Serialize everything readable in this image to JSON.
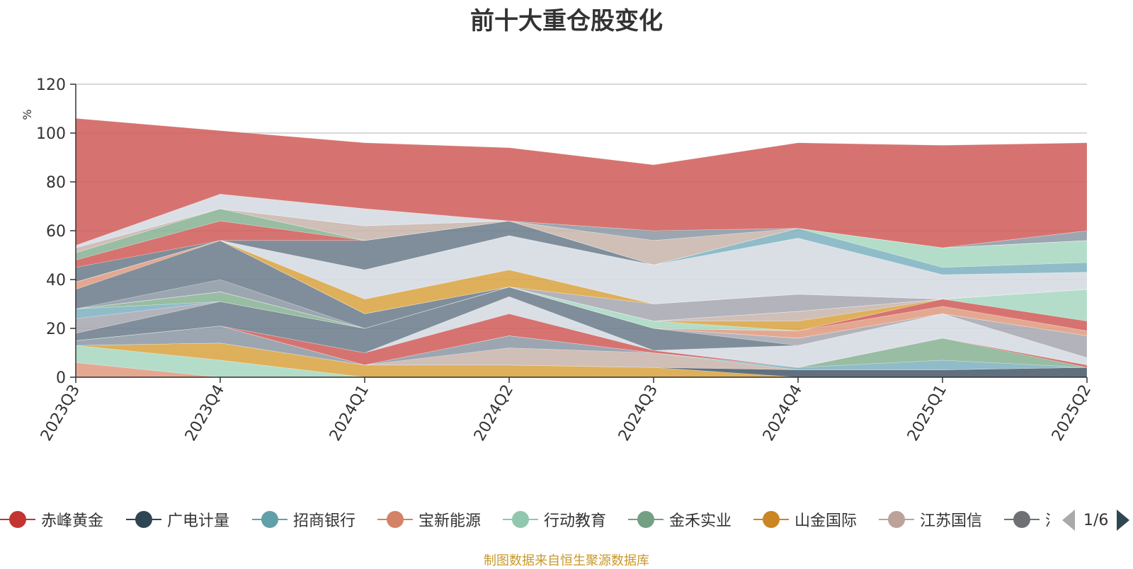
{
  "title": "前十大重仓股变化",
  "source_note": "制图数据来自恒生聚源数据库",
  "legend_page": "1/6",
  "colors": {
    "axis": "#333333",
    "grid": "#cccccc",
    "unit": "#e03030"
  },
  "chart_data": {
    "type": "area",
    "stacked": true,
    "x": [
      "2023Q3",
      "2023Q4",
      "2024Q1",
      "2024Q2",
      "2024Q3",
      "2024Q4",
      "2025Q1",
      "2025Q2"
    ],
    "ylabel": "%",
    "ylim": [
      0,
      120
    ],
    "yticks": [
      0,
      20,
      40,
      60,
      80,
      100,
      120
    ],
    "grid": true,
    "legend_position": "bottom",
    "series": [
      {
        "name": "宝新能源",
        "color": "#e09c82",
        "values": [
          6,
          0,
          0,
          0,
          0,
          0,
          0,
          0
        ]
      },
      {
        "name": "行动教育",
        "color": "#a8d8c2",
        "values": [
          7,
          7,
          0,
          0,
          0,
          0,
          0,
          0
        ]
      },
      {
        "name": "山金国际",
        "color": "#d9a545",
        "values": [
          0,
          7,
          5,
          5,
          4,
          0,
          0,
          0
        ]
      },
      {
        "name": "广电计量",
        "color": "#4a5c6c",
        "values": [
          0,
          0,
          0,
          0,
          0,
          3,
          3,
          4
        ]
      },
      {
        "name": "",
        "color": "#c8b6ad",
        "values": [
          0,
          0,
          0,
          7,
          6,
          0,
          0,
          0
        ]
      },
      {
        "name": "",
        "color": "#8e9aa6",
        "values": [
          2,
          7,
          0,
          5,
          0,
          0,
          0,
          0
        ]
      },
      {
        "name": "招商银行",
        "color": "#7fb3c0",
        "values": [
          0,
          0,
          0,
          0,
          0,
          1,
          4,
          0
        ]
      },
      {
        "name": "金禾实业",
        "color": "#8ab495",
        "values": [
          0,
          0,
          0,
          0,
          0,
          0,
          9,
          0
        ]
      },
      {
        "name": "赤峰黄金",
        "color": "#d0605c",
        "values": [
          0,
          0,
          5,
          9,
          1,
          0,
          0,
          1
        ]
      },
      {
        "name": "",
        "color": "#d5dbe3",
        "values": [
          0,
          0,
          0,
          7,
          0,
          9,
          10,
          3
        ]
      },
      {
        "name": "",
        "color": "#6d7e8c",
        "values": [
          3,
          10,
          10,
          4,
          9,
          0,
          0,
          0
        ]
      },
      {
        "name": "",
        "color": "#a9a9b3",
        "values": [
          6,
          0,
          0,
          0,
          0,
          3,
          0,
          9
        ]
      },
      {
        "name": "",
        "color": "#7fb3c0",
        "values": [
          4,
          0,
          0,
          0,
          0,
          0,
          0,
          0
        ]
      },
      {
        "name": "",
        "color": "#8ab495",
        "values": [
          0,
          4,
          0,
          0,
          0,
          0,
          0,
          0
        ]
      },
      {
        "name": "",
        "color": "#e09c82",
        "values": [
          0,
          0,
          0,
          0,
          0,
          3,
          3,
          2
        ]
      },
      {
        "name": "",
        "color": "#d0605c",
        "values": [
          0,
          0,
          0,
          0,
          0,
          0,
          3,
          4
        ]
      },
      {
        "name": "",
        "color": "#a8d8c2",
        "values": [
          0,
          0,
          0,
          0,
          3,
          0,
          0,
          13
        ]
      },
      {
        "name": "",
        "color": "#d9a545",
        "values": [
          0,
          0,
          0,
          0,
          0,
          4,
          0,
          0
        ]
      },
      {
        "name": "",
        "color": "#c8b6ad",
        "values": [
          0,
          0,
          0,
          0,
          0,
          4,
          0,
          0
        ]
      },
      {
        "name": "",
        "color": "#8e9aa6",
        "values": [
          0,
          5,
          0,
          0,
          0,
          0,
          0,
          0
        ]
      },
      {
        "name": "",
        "color": "#6d7e8c",
        "values": [
          8,
          16,
          6,
          0,
          0,
          0,
          0,
          0
        ]
      },
      {
        "name": "",
        "color": "#e09c82",
        "values": [
          3,
          0,
          0,
          0,
          0,
          0,
          0,
          0
        ]
      },
      {
        "name": "",
        "color": "#a9a9b3",
        "values": [
          0,
          0,
          0,
          0,
          7,
          7,
          0,
          0
        ]
      },
      {
        "name": "",
        "color": "#7fb3c0",
        "values": [
          0,
          0,
          0,
          0,
          0,
          0,
          0,
          0
        ]
      },
      {
        "name": "",
        "color": "#d9a545",
        "values": [
          0,
          0,
          6,
          7,
          0,
          0,
          0,
          0
        ]
      },
      {
        "name": "",
        "color": "#a9a9b3",
        "values": [
          0,
          0,
          0,
          0,
          0,
          0,
          0,
          0
        ]
      },
      {
        "name": "",
        "color": "#d5dbe3",
        "values": [
          0,
          0,
          12,
          14,
          16,
          23,
          10,
          7
        ]
      },
      {
        "name": "",
        "color": "#7fb3c0",
        "values": [
          0,
          0,
          0,
          0,
          0,
          4,
          3,
          4
        ]
      },
      {
        "name": "",
        "color": "#a8d8c2",
        "values": [
          0,
          0,
          0,
          0,
          0,
          0,
          8,
          9
        ]
      },
      {
        "name": "",
        "color": "#6d7e8c",
        "values": [
          6,
          0,
          12,
          6,
          0,
          0,
          0,
          0
        ]
      },
      {
        "name": "",
        "color": "#d0605c",
        "values": [
          3,
          8,
          0,
          0,
          0,
          0,
          0,
          0
        ]
      },
      {
        "name": "",
        "color": "#8ab495",
        "values": [
          3,
          5,
          0,
          0,
          0,
          0,
          0,
          0
        ]
      },
      {
        "name": "",
        "color": "#e09c82",
        "values": [
          0,
          0,
          0,
          0,
          0,
          0,
          0,
          0
        ]
      },
      {
        "name": "",
        "color": "#c8b6ad",
        "values": [
          2,
          0,
          6,
          0,
          10,
          0,
          0,
          0
        ]
      },
      {
        "name": "",
        "color": "#d9a545",
        "values": [
          0,
          0,
          0,
          0,
          0,
          0,
          0,
          0
        ]
      },
      {
        "name": "",
        "color": "#8e9aa6",
        "values": [
          0,
          0,
          0,
          0,
          4,
          0,
          0,
          4
        ]
      },
      {
        "name": "",
        "color": "#d5dbe3",
        "values": [
          1,
          6,
          7,
          0,
          0,
          0,
          0,
          0
        ]
      },
      {
        "name": "",
        "color": "#d0605c",
        "values": [
          52,
          26,
          27,
          30,
          27,
          35,
          42,
          36
        ]
      }
    ]
  },
  "legend": {
    "items": [
      {
        "name": "赤峰黄金",
        "color": "#c23531"
      },
      {
        "name": "广电计量",
        "color": "#2f4554"
      },
      {
        "name": "招商银行",
        "color": "#61a0a8"
      },
      {
        "name": "宝新能源",
        "color": "#d48265"
      },
      {
        "name": "行动教育",
        "color": "#91c7ae"
      },
      {
        "name": "金禾实业",
        "color": "#749f83"
      },
      {
        "name": "山金国际",
        "color": "#ca8622"
      },
      {
        "name": "江苏国信",
        "color": "#bda29a"
      },
      {
        "name": "汇",
        "color": "#6e7074"
      }
    ]
  }
}
